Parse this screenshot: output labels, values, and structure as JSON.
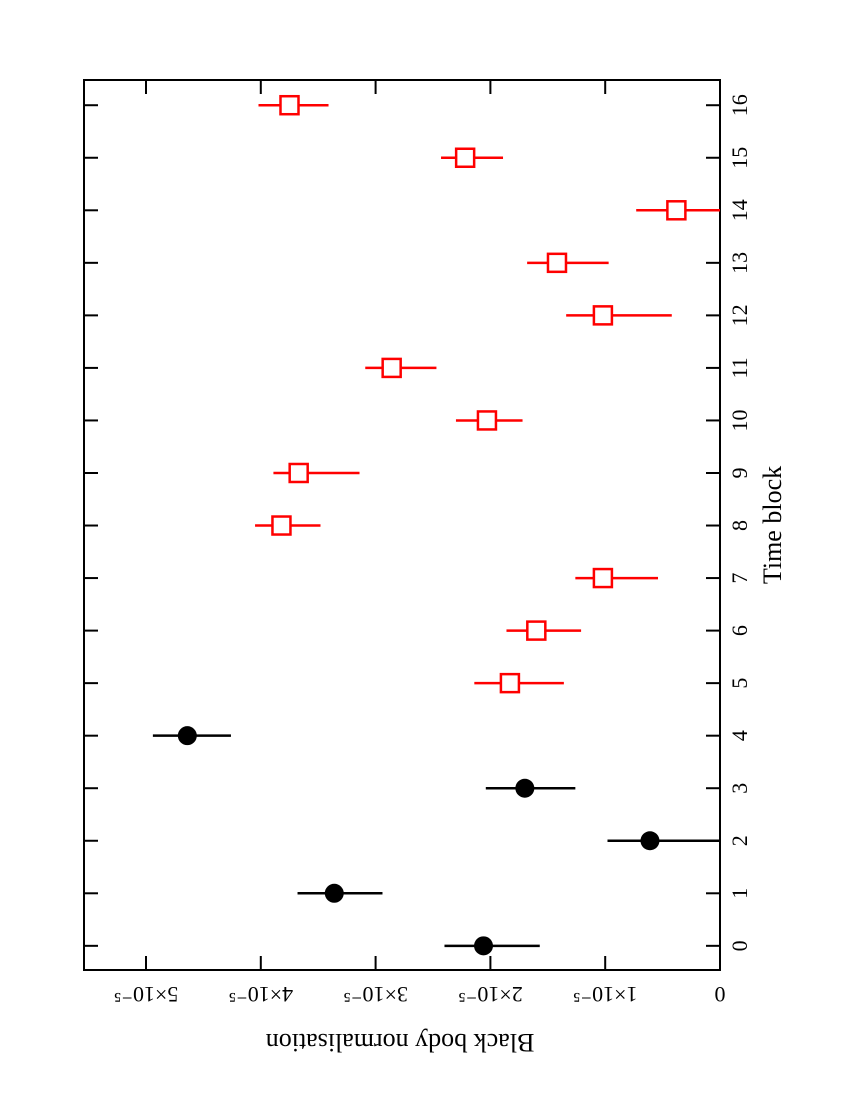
{
  "chart_data": {
    "type": "errorbar",
    "x_label": "Time block",
    "y_label": "Black body normalisation",
    "xlim": [
      -0.46,
      16.48
    ],
    "xticks": [
      0,
      1,
      2,
      3,
      4,
      5,
      6,
      7,
      8,
      9,
      10,
      11,
      12,
      13,
      14,
      15,
      16
    ],
    "ylim": [
      0,
      5.54e-05
    ],
    "yticks": [
      0,
      {
        "value": 1e-05,
        "label": "1×10⁻⁵"
      },
      {
        "value": 2e-05,
        "label": "2×10⁻⁵"
      },
      {
        "value": 3e-05,
        "label": "3×10⁻⁵"
      },
      {
        "value": 4e-05,
        "label": "4×10⁻⁵"
      },
      {
        "value": 5e-05,
        "label": "5×10⁻⁵"
      }
    ],
    "series": [
      {
        "color": "#000000",
        "marker": "circle",
        "x": [
          0,
          1,
          2,
          3,
          4
        ],
        "values": [
          2.06e-05,
          3.36e-05,
          6.1e-06,
          1.7e-05,
          4.64e-05
        ],
        "err_plus": [
          3.4e-06,
          3.2e-06,
          3.7e-06,
          3.4e-06,
          3e-06
        ],
        "err_minus": [
          4.9e-06,
          4.2e-06,
          6.1e-06,
          4.4e-06,
          3.8e-06
        ]
      },
      {
        "color": "#ff0000",
        "marker": "square",
        "x": [
          5,
          6,
          7,
          8,
          9,
          10,
          11,
          12,
          13,
          14,
          15,
          16
        ],
        "values": [
          1.83e-05,
          1.6e-05,
          1.02e-05,
          3.82e-05,
          3.67e-05,
          2.03e-05,
          2.86e-05,
          1.02e-05,
          1.42e-05,
          3.8e-06,
          2.22e-05,
          3.75e-05
        ],
        "err_plus": [
          3.1e-06,
          2.6e-06,
          2.4e-06,
          2.3e-06,
          2.2e-06,
          2.7e-06,
          2.3e-06,
          3.2e-06,
          2.6e-06,
          3.5e-06,
          2.1e-06,
          2.7e-06
        ],
        "err_minus": [
          4.7e-06,
          3.9e-06,
          4.8e-06,
          3.4e-06,
          5.3e-06,
          3.1e-06,
          3.9e-06,
          6e-06,
          4.5e-06,
          3.8e-06,
          3.3e-06,
          3.4e-06
        ]
      }
    ]
  }
}
